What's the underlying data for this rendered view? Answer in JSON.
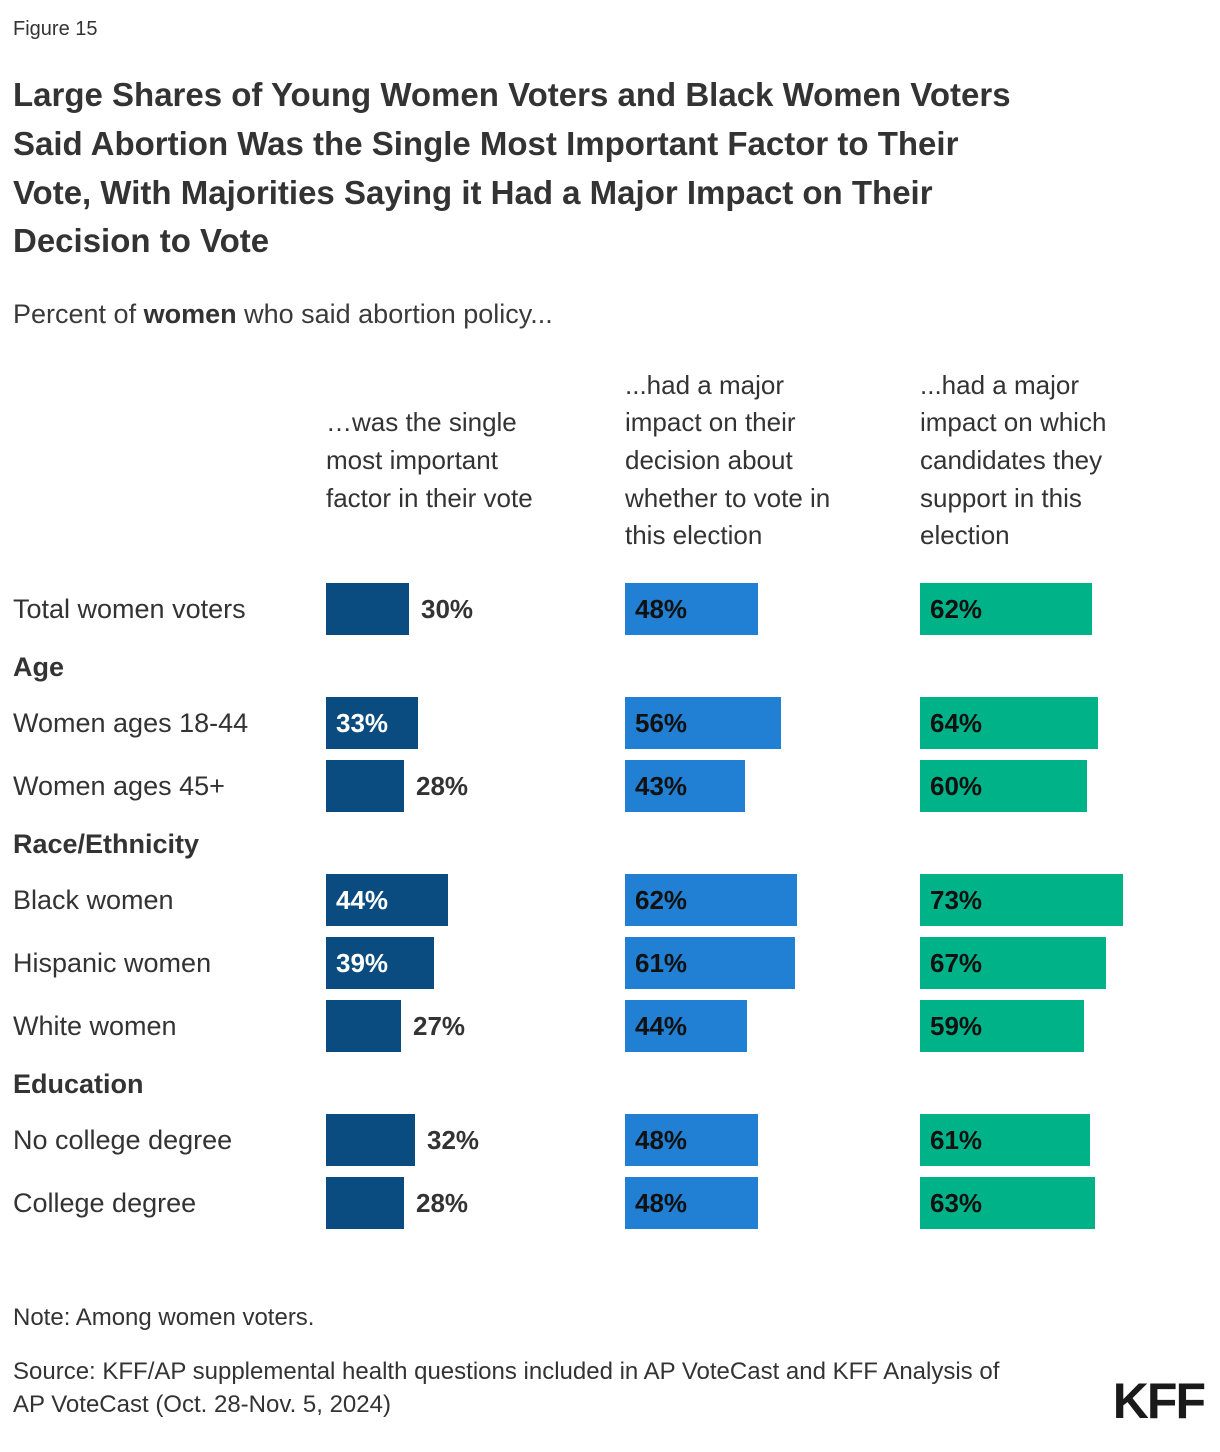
{
  "figure_label": "Figure 15",
  "subtitle": {
    "prefix": "Percent of ",
    "bold": "women",
    "suffix": " who said abortion policy..."
  },
  "note": "Note: Among women voters.",
  "source": "Source: KFF/AP supplemental health questions included in AP VoteCast and KFF Analysis of\nAP VoteCast (Oct. 28-Nov. 5, 2024)",
  "logo": "KFF",
  "colors": {
    "navy": "#0B4C80",
    "blue": "#2180D3",
    "green": "#00B287",
    "text": "#333333"
  },
  "chart_data": {
    "type": "bar",
    "orientation": "horizontal",
    "unit": "%",
    "xlim": [
      0,
      100
    ],
    "grid": false,
    "title": "Large Shares of Young Women Voters and Black Women Voters\nSaid Abortion Was the Single Most Important Factor to Their\nVote, With Majorities Saying it Had a Major Impact on Their\nDecision to Vote",
    "subtitle": "Percent of women who said abortion policy...",
    "series": [
      {
        "name": "…was the single\nmost important\nfactor in their vote",
        "color": "#0B4C80"
      },
      {
        "name": "...had a major\nimpact on their\ndecision about\nwhether to vote in\nthis election",
        "color": "#2180D3"
      },
      {
        "name": "...had a major\nimpact on which\ncandidates they\nsupport in this\nelection",
        "color": "#00B287"
      }
    ],
    "groups": [
      {
        "section": "",
        "rows": [
          {
            "label": "Total women voters",
            "values": [
              30,
              48,
              62
            ]
          }
        ]
      },
      {
        "section": "Age",
        "rows": [
          {
            "label": "Women ages 18-44",
            "values": [
              33,
              56,
              64
            ]
          },
          {
            "label": "Women ages 45+",
            "values": [
              28,
              43,
              60
            ]
          }
        ]
      },
      {
        "section": "Race/Ethnicity",
        "rows": [
          {
            "label": "Black women",
            "values": [
              44,
              62,
              73
            ]
          },
          {
            "label": "Hispanic women",
            "values": [
              39,
              61,
              67
            ]
          },
          {
            "label": "White women",
            "values": [
              27,
              44,
              59
            ]
          }
        ]
      },
      {
        "section": "Education",
        "rows": [
          {
            "label": "No college degree",
            "values": [
              32,
              48,
              61
            ]
          },
          {
            "label": "College degree",
            "values": [
              28,
              48,
              63
            ]
          }
        ]
      }
    ]
  }
}
